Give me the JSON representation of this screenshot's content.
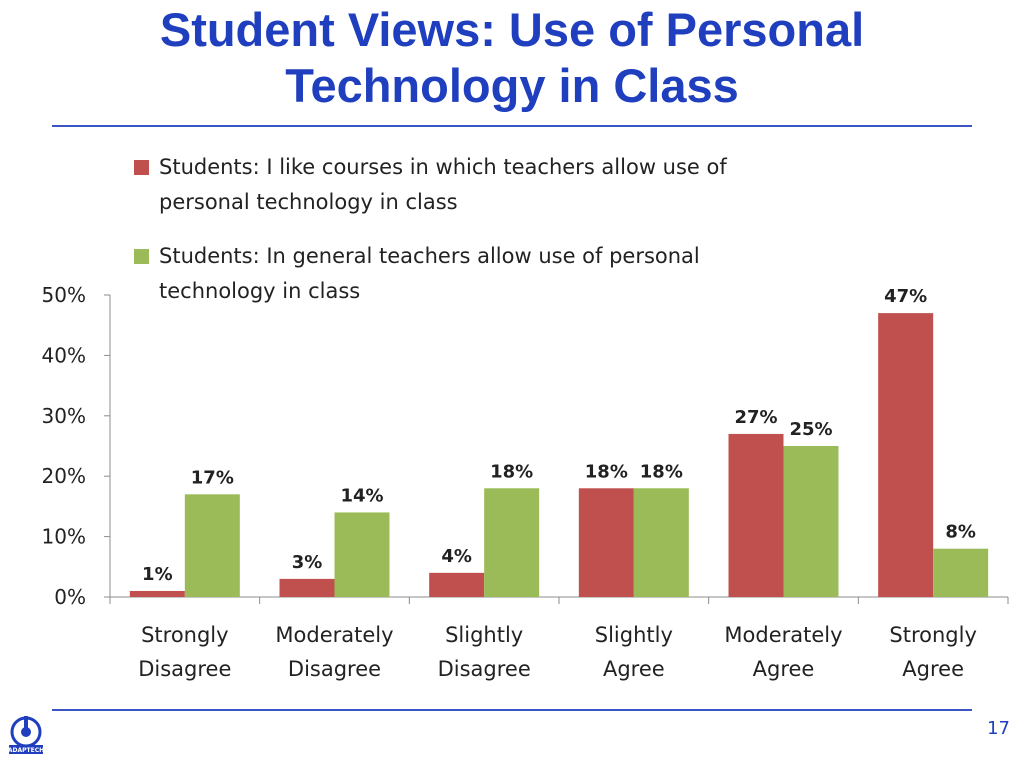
{
  "slide": {
    "title_line1": "Student Views: Use of Personal",
    "title_line2": "Technology in Class",
    "page_number": "17",
    "logo_text": "ADAPTECH"
  },
  "colors": {
    "title": "#1f3fbf",
    "rule": "#3a55c4",
    "series1": "#c0504d",
    "series2": "#9bbb59"
  },
  "chart_data": {
    "type": "bar",
    "title": "",
    "xlabel": "",
    "ylabel": "",
    "ylim": [
      0,
      50
    ],
    "yticks": [
      "0%",
      "10%",
      "20%",
      "30%",
      "40%",
      "50%"
    ],
    "grid": false,
    "legend_position": "top",
    "categories": [
      [
        "Strongly",
        "Disagree"
      ],
      [
        "Moderately",
        "Disagree"
      ],
      [
        "Slightly",
        "Disagree"
      ],
      [
        "Slightly",
        "Agree"
      ],
      [
        "Moderately",
        "Agree"
      ],
      [
        "Strongly",
        "Agree"
      ]
    ],
    "series": [
      {
        "name": "Students: I like courses in which teachers allow use of personal technology in class",
        "legend_lines": [
          "Students: I like courses in which teachers allow use of",
          "personal technology in class"
        ],
        "color": "#c0504d",
        "values": [
          1,
          3,
          4,
          18,
          27,
          47
        ],
        "labels": [
          "1%",
          "3%",
          "4%",
          "18%",
          "27%",
          "47%"
        ]
      },
      {
        "name": "Students: In general teachers allow use of personal technology in class",
        "legend_lines": [
          "Students: In general teachers allow use of personal",
          "technology in class"
        ],
        "color": "#9bbb59",
        "values": [
          17,
          14,
          18,
          18,
          25,
          8
        ],
        "labels": [
          "17%",
          "14%",
          "18%",
          "18%",
          "25%",
          "8%"
        ]
      }
    ]
  }
}
